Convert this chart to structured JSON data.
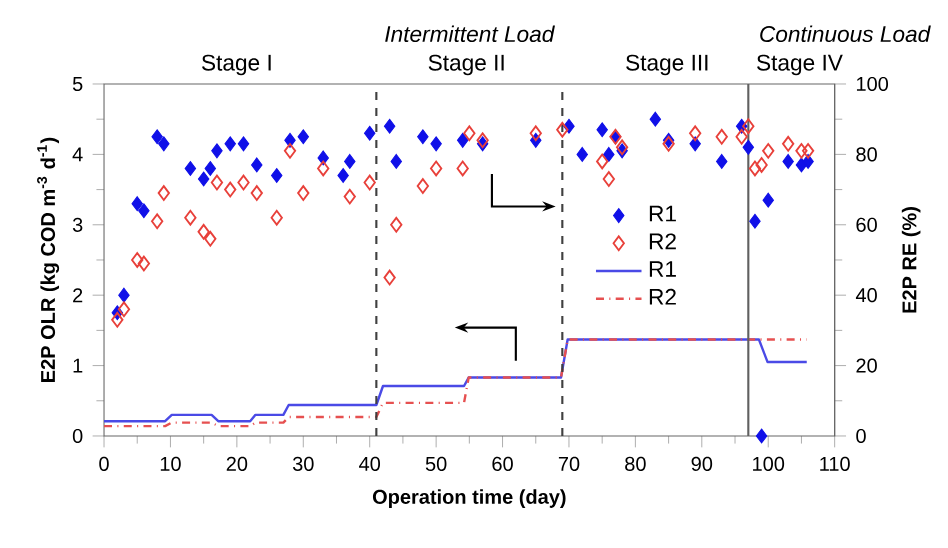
{
  "chart_data": {
    "type": "scatter",
    "xlabel": "Operation time (day)",
    "ylabel": "E2P OLR (kg COD m$^{-3}$ d$^{-1}$)",
    "y2label": "E2P RE (%)",
    "xlim": [
      0,
      110
    ],
    "xticks": [
      0,
      10,
      20,
      30,
      40,
      50,
      60,
      70,
      80,
      90,
      100,
      110
    ],
    "ylim": [
      0,
      5
    ],
    "yticks": [
      0,
      1,
      2,
      3,
      4,
      5
    ],
    "y2lim": [
      0,
      100
    ],
    "y2ticks": [
      0,
      20,
      40,
      60,
      80,
      100
    ],
    "legend": "right",
    "series": [
      {
        "name": "R1",
        "axis": "y2",
        "marker": "diamond",
        "color": "#1010e8",
        "x": [
          2,
          3,
          5,
          6,
          8,
          9,
          13,
          15,
          16,
          17,
          19,
          21,
          23,
          26,
          28,
          30,
          33,
          36,
          37,
          40,
          43,
          44,
          48,
          50,
          54,
          57,
          65,
          70,
          72,
          75,
          76,
          77,
          78,
          83,
          85,
          89,
          93,
          96,
          97,
          98,
          99,
          100,
          103,
          105,
          106
        ],
        "values": [
          35,
          40,
          66,
          64,
          85,
          83,
          76,
          73,
          76,
          81,
          83,
          83,
          77,
          74,
          84,
          85,
          79,
          74,
          78,
          86,
          88,
          78,
          85,
          83,
          84,
          83,
          84,
          88,
          80,
          87,
          80,
          85,
          81,
          90,
          84,
          83,
          78,
          88,
          82,
          61,
          0,
          67,
          78,
          77,
          78
        ]
      },
      {
        "name": "R2",
        "axis": "y2",
        "marker": "diamond",
        "color": "#e8403a",
        "x": [
          2,
          3,
          5,
          6,
          8,
          9,
          13,
          15,
          16,
          17,
          19,
          21,
          23,
          26,
          28,
          30,
          33,
          37,
          40,
          43,
          44,
          48,
          50,
          54,
          55,
          57,
          65,
          69,
          75,
          76,
          77,
          78,
          85,
          89,
          93,
          96,
          97,
          98,
          99,
          100,
          103,
          105,
          106
        ],
        "values": [
          33,
          36,
          50,
          49,
          61,
          69,
          62,
          58,
          56,
          72,
          70,
          72,
          69,
          62,
          81,
          69,
          76,
          68,
          72,
          45,
          60,
          71,
          76,
          76,
          86,
          84,
          86,
          87,
          78,
          73,
          85,
          82,
          83,
          86,
          85,
          85,
          88,
          76,
          77,
          81,
          83,
          81,
          81
        ]
      },
      {
        "name": "R1",
        "type": "line",
        "line_style": "solid",
        "color": "#4a4ae6",
        "x": [
          0,
          9.2,
          10.2,
          16.2,
          17.2,
          22,
          22.8,
          27,
          27.8,
          41,
          42,
          54.2,
          54.9,
          68.8,
          69.8,
          98.6,
          99.9,
          105.8
        ],
        "values": [
          0.21,
          0.21,
          0.3,
          0.3,
          0.21,
          0.21,
          0.3,
          0.3,
          0.44,
          0.44,
          0.71,
          0.71,
          0.83,
          0.83,
          1.37,
          1.37,
          1.05,
          1.05
        ]
      },
      {
        "name": "R2",
        "type": "line",
        "line_style": "dashdot",
        "color": "#e65050",
        "x": [
          0,
          9.2,
          10.2,
          16.2,
          17.2,
          22,
          22.8,
          27,
          27.8,
          41,
          42,
          54.2,
          54.9,
          68.8,
          69.8,
          105.8
        ],
        "values": [
          0.14,
          0.14,
          0.19,
          0.19,
          0.14,
          0.14,
          0.19,
          0.19,
          0.27,
          0.27,
          0.47,
          0.47,
          0.83,
          0.83,
          1.37,
          1.37
        ]
      }
    ],
    "ref_lines": [
      {
        "axis": "x",
        "value": 41,
        "line_style": "dashed",
        "color": "#404040"
      },
      {
        "axis": "x",
        "value": 69,
        "line_style": "dashed",
        "color": "#404040"
      },
      {
        "axis": "x",
        "value": 97,
        "line_style": "solid",
        "color": "#606060"
      }
    ],
    "annotations": [
      "Intermittent Load",
      "Continuous Load",
      "Stage I",
      "Stage II",
      "Stage III",
      "Stage IV"
    ]
  }
}
